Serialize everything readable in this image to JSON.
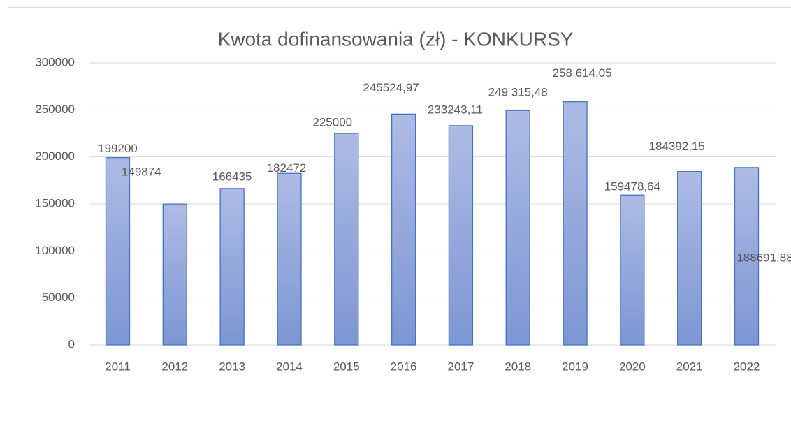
{
  "chart_data": {
    "type": "bar",
    "title": "Kwota dofinansowania (zł) - KONKURSY",
    "categories": [
      "2011",
      "2012",
      "2013",
      "2014",
      "2015",
      "2016",
      "2017",
      "2018",
      "2019",
      "2020",
      "2021",
      "2022"
    ],
    "values": [
      199200,
      149874,
      166435,
      182472,
      225000,
      245524.97,
      233243.11,
      249315.48,
      258614.05,
      159478.64,
      184392.15,
      188691.88
    ],
    "value_labels": [
      "199200",
      "149874",
      "166435",
      "182472",
      "225000",
      "245524,97",
      "233243,11",
      "249 315,48",
      "258 614,05",
      "159478,64",
      "184392,15",
      "188691,88"
    ],
    "color": "#4472c4",
    "ylim": [
      0,
      300000
    ],
    "yticks": [
      0,
      50000,
      100000,
      150000,
      200000,
      250000,
      300000
    ],
    "grid": true
  }
}
